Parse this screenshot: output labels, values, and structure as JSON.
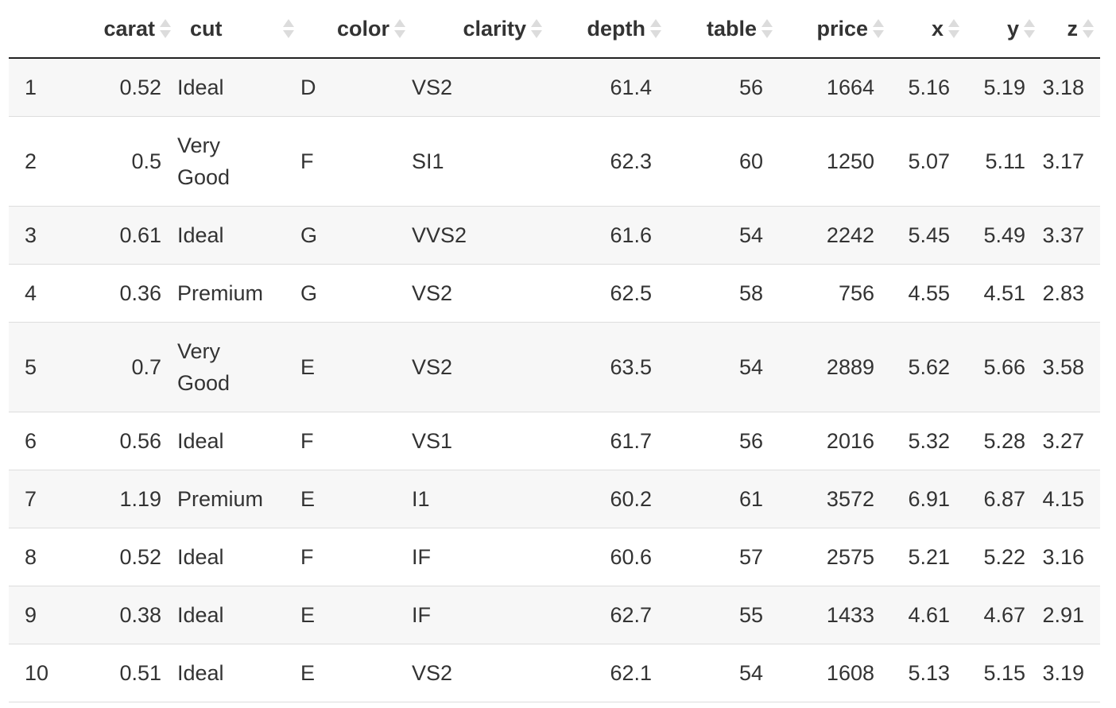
{
  "table": {
    "columns": [
      {
        "key": "index",
        "label": ""
      },
      {
        "key": "carat",
        "label": "carat"
      },
      {
        "key": "cut",
        "label": "cut"
      },
      {
        "key": "color",
        "label": "color"
      },
      {
        "key": "clarity",
        "label": "clarity"
      },
      {
        "key": "depth",
        "label": "depth"
      },
      {
        "key": "table",
        "label": "table"
      },
      {
        "key": "price",
        "label": "price"
      },
      {
        "key": "x",
        "label": "x"
      },
      {
        "key": "y",
        "label": "y"
      },
      {
        "key": "z",
        "label": "z"
      }
    ],
    "rows": [
      [
        "1",
        "0.52",
        "Ideal",
        "D",
        "VS2",
        "61.4",
        "56",
        "1664",
        "5.16",
        "5.19",
        "3.18"
      ],
      [
        "2",
        "0.5",
        "Very Good",
        "F",
        "SI1",
        "62.3",
        "60",
        "1250",
        "5.07",
        "5.11",
        "3.17"
      ],
      [
        "3",
        "0.61",
        "Ideal",
        "G",
        "VVS2",
        "61.6",
        "54",
        "2242",
        "5.45",
        "5.49",
        "3.37"
      ],
      [
        "4",
        "0.36",
        "Premium",
        "G",
        "VS2",
        "62.5",
        "58",
        "756",
        "4.55",
        "4.51",
        "2.83"
      ],
      [
        "5",
        "0.7",
        "Very Good",
        "E",
        "VS2",
        "63.5",
        "54",
        "2889",
        "5.62",
        "5.66",
        "3.58"
      ],
      [
        "6",
        "0.56",
        "Ideal",
        "F",
        "VS1",
        "61.7",
        "56",
        "2016",
        "5.32",
        "5.28",
        "3.27"
      ],
      [
        "7",
        "1.19",
        "Premium",
        "E",
        "I1",
        "60.2",
        "61",
        "3572",
        "6.91",
        "6.87",
        "4.15"
      ],
      [
        "8",
        "0.52",
        "Ideal",
        "F",
        "IF",
        "60.6",
        "57",
        "2575",
        "5.21",
        "5.22",
        "3.16"
      ],
      [
        "9",
        "0.38",
        "Ideal",
        "E",
        "IF",
        "62.7",
        "55",
        "1433",
        "4.61",
        "4.67",
        "2.91"
      ],
      [
        "10",
        "0.51",
        "Ideal",
        "E",
        "VS2",
        "62.1",
        "54",
        "1608",
        "5.13",
        "5.15",
        "3.19"
      ]
    ]
  },
  "icons": {
    "sort": "sort-both-icon"
  },
  "colors": {
    "text": "#333333",
    "stripe": "#f7f7f7",
    "header_rule": "#222222",
    "row_rule": "#dddddd",
    "sort_icon": "#dcdcdc"
  }
}
